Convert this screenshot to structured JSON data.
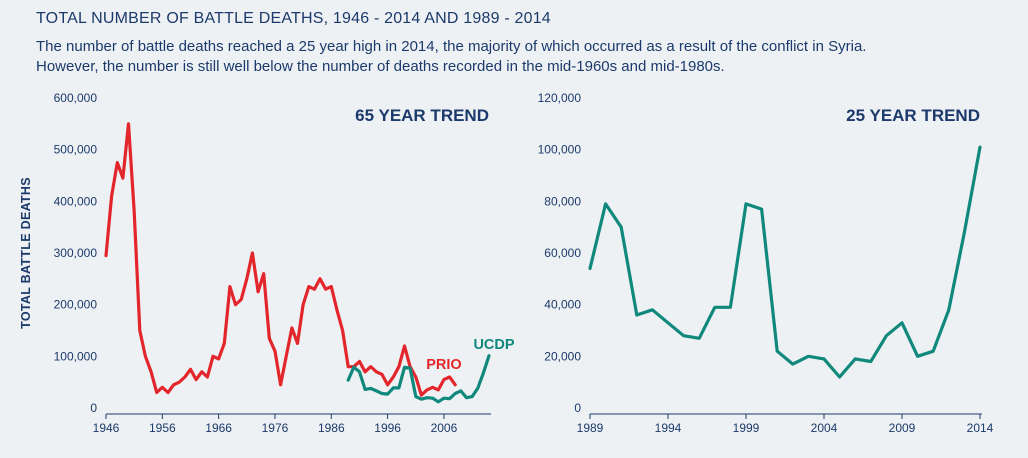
{
  "header": {
    "title": "TOTAL NUMBER OF BATTLE DEATHS, 1946 - 2014 AND 1989 - 2014",
    "subtitle_line1": "The number of battle deaths reached a 25 year high in 2014, the majority of which occurred as a result of the conflict in Syria.",
    "subtitle_line2": "However, the number is still well below the number of deaths recorded in the mid-1960s and mid-1980s."
  },
  "colors": {
    "prio": "#e2262b",
    "ucdp": "#10887c",
    "text": "#1b3a6b",
    "axis": "#1b3a6b",
    "background": "#eef1f4"
  },
  "chart_data": [
    {
      "type": "line",
      "title": "65 YEAR TREND",
      "ylabel": "TOTAL BATTLE DEATHS",
      "xlabel": "",
      "xlim": [
        1946,
        2014
      ],
      "ylim": [
        0,
        600000
      ],
      "x_ticks": [
        "1946",
        "1956",
        "1966",
        "1976",
        "1986",
        "1996",
        "2006"
      ],
      "x_tick_values": [
        1946,
        1956,
        1966,
        1976,
        1986,
        1996,
        2006
      ],
      "y_ticks": [
        "0",
        "100,000",
        "200,000",
        "300,000",
        "400,000",
        "500,000",
        "600,000"
      ],
      "y_tick_values": [
        0,
        100000,
        200000,
        300000,
        400000,
        500000,
        600000
      ],
      "grid": false,
      "series": [
        {
          "name": "PRIO",
          "color": "#e2262b",
          "x": [
            1946,
            1947,
            1948,
            1949,
            1950,
            1951,
            1952,
            1953,
            1954,
            1955,
            1956,
            1957,
            1958,
            1959,
            1960,
            1961,
            1962,
            1963,
            1964,
            1965,
            1966,
            1967,
            1968,
            1969,
            1970,
            1971,
            1972,
            1973,
            1974,
            1975,
            1976,
            1977,
            1978,
            1979,
            1980,
            1981,
            1982,
            1983,
            1984,
            1985,
            1986,
            1987,
            1988,
            1989,
            1990,
            1991,
            1992,
            1993,
            1994,
            1995,
            1996,
            1997,
            1998,
            1999,
            2000,
            2001,
            2002,
            2003,
            2004,
            2005,
            2006,
            2007,
            2008
          ],
          "y": [
            295000,
            410000,
            475000,
            445000,
            550000,
            380000,
            150000,
            100000,
            70000,
            30000,
            40000,
            30000,
            45000,
            50000,
            60000,
            75000,
            55000,
            70000,
            60000,
            100000,
            95000,
            125000,
            235000,
            200000,
            210000,
            250000,
            300000,
            225000,
            260000,
            135000,
            110000,
            45000,
            100000,
            155000,
            125000,
            200000,
            235000,
            230000,
            250000,
            230000,
            235000,
            190000,
            150000,
            80000,
            80000,
            90000,
            70000,
            80000,
            70000,
            65000,
            45000,
            60000,
            80000,
            120000,
            80000,
            60000,
            25000,
            35000,
            40000,
            35000,
            55000,
            60000,
            45000
          ]
        },
        {
          "name": "UCDP",
          "color": "#10887c",
          "x": [
            1989,
            1990,
            1991,
            1992,
            1993,
            1994,
            1995,
            1996,
            1997,
            1998,
            1999,
            2000,
            2001,
            2002,
            2003,
            2004,
            2005,
            2006,
            2007,
            2008,
            2009,
            2010,
            2011,
            2012,
            2013,
            2014
          ],
          "y": [
            54000,
            79000,
            70000,
            36000,
            38000,
            33000,
            28000,
            27000,
            39000,
            39000,
            79000,
            77000,
            22000,
            17000,
            20000,
            19000,
            12000,
            19000,
            18000,
            28000,
            33000,
            20000,
            22000,
            38000,
            68000,
            101000
          ]
        }
      ]
    },
    {
      "type": "line",
      "title": "25 YEAR TREND",
      "ylabel": "",
      "xlabel": "",
      "xlim": [
        1989,
        2014
      ],
      "ylim": [
        0,
        120000
      ],
      "x_ticks": [
        "1989",
        "1994",
        "1999",
        "2004",
        "2009",
        "2014"
      ],
      "x_tick_values": [
        1989,
        1994,
        1999,
        2004,
        2009,
        2014
      ],
      "y_ticks": [
        "0",
        "20,000",
        "40,000",
        "60,000",
        "80,000",
        "100,000",
        "120,000"
      ],
      "y_tick_values": [
        0,
        20000,
        40000,
        60000,
        80000,
        100000,
        120000
      ],
      "grid": false,
      "series": [
        {
          "color": "#10887c",
          "x": [
            1989,
            1990,
            1991,
            1992,
            1993,
            1994,
            1995,
            1996,
            1997,
            1998,
            1999,
            2000,
            2001,
            2002,
            2003,
            2004,
            2005,
            2006,
            2007,
            2008,
            2009,
            2010,
            2011,
            2012,
            2013,
            2014
          ],
          "y": [
            54000,
            79000,
            70000,
            36000,
            38000,
            33000,
            28000,
            27000,
            39000,
            39000,
            79000,
            77000,
            22000,
            17000,
            20000,
            19000,
            12000,
            19000,
            18000,
            28000,
            33000,
            20000,
            22000,
            38000,
            68000,
            101000
          ]
        }
      ]
    }
  ]
}
